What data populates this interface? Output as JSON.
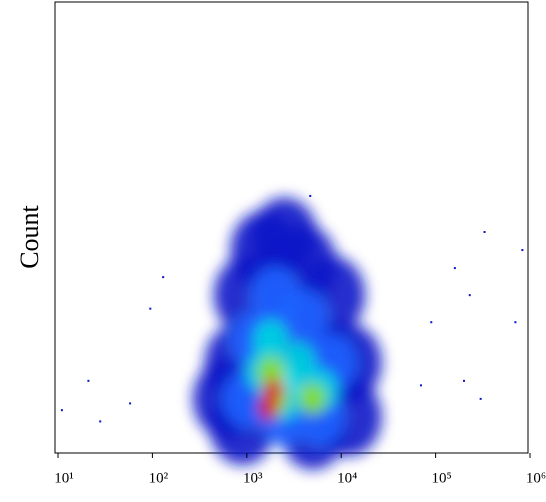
{
  "chart_data": {
    "type": "density",
    "y_label": "Count",
    "log_x": true,
    "xlim": [
      10,
      1000000
    ],
    "ylim": [
      0,
      100
    ],
    "xticks": [
      {
        "value": 10,
        "label": "10¹"
      },
      {
        "value": 100,
        "label": "10²"
      },
      {
        "value": 1000,
        "label": "10³"
      },
      {
        "value": 10000,
        "label": "10⁴"
      },
      {
        "value": 100000,
        "label": "10⁵"
      },
      {
        "value": 1000000,
        "label": "10⁶"
      }
    ],
    "colors": [
      "#0a14c8",
      "#1e64ff",
      "#00d8e0",
      "#8ee000",
      "#e01000"
    ],
    "points": {
      "x": [
        800,
        1000,
        1500,
        2500,
        4000,
        8000,
        12000,
        12000,
        5000,
        900,
        600,
        3000,
        7000,
        1200,
        2000,
        4000,
        8000,
        1000,
        2500,
        6000,
        1800,
        1500,
        3500,
        6000,
        2500,
        1800,
        2000,
        5000,
        1900,
        1700,
        11,
        21,
        28,
        58,
        130,
        95,
        4700,
        330000,
        830000,
        160000,
        230000,
        700000,
        90000,
        300000,
        200000,
        70000
      ],
      "y": [
        20,
        35,
        45,
        48,
        42,
        35,
        20,
        8,
        5,
        6,
        12,
        28,
        20,
        25,
        35,
        30,
        20,
        12,
        8,
        8,
        25,
        18,
        20,
        14,
        12,
        18,
        12,
        12,
        14,
        10,
        9.5,
        16,
        7,
        11,
        39,
        32,
        57,
        49,
        45,
        41,
        35,
        29,
        29,
        12,
        16,
        15
      ],
      "density": [
        1,
        1,
        1,
        1,
        1,
        1,
        1,
        1,
        1,
        1,
        1,
        1,
        1,
        2,
        2,
        2,
        2,
        2,
        2,
        2,
        3,
        3,
        3,
        3,
        3,
        4,
        4,
        4,
        5,
        5,
        0,
        0,
        0,
        0,
        0,
        0,
        0,
        0,
        0,
        0,
        0,
        0,
        0,
        0,
        0,
        0
      ]
    }
  }
}
